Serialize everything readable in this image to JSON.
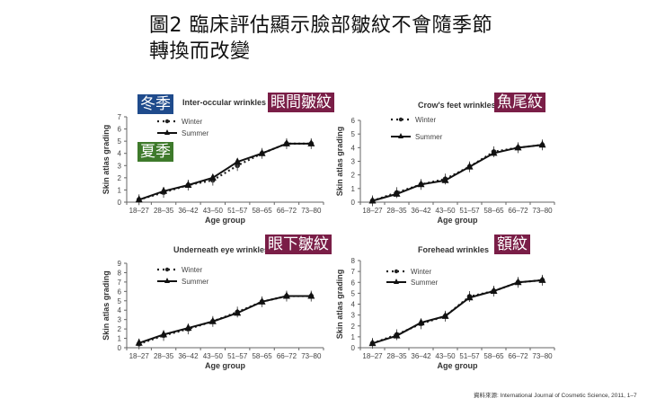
{
  "title": {
    "line1": "圖2 臨床評估顯示臉部皺紋不會隨季節",
    "line2": "轉換而改變"
  },
  "labels": {
    "winter_zh": "冬季",
    "summer_zh": "夏季"
  },
  "source": "資料來源: International Journal of Cosmetic Science, 2011, 1–7",
  "colors": {
    "wine": "#7a1e47",
    "blue": "#1f4b8c",
    "green": "#3e7a2b",
    "line": "#111111"
  },
  "chart_data": [
    {
      "type": "line",
      "title": "Inter-occular wrinkles",
      "title_zh": "眼間皺紋",
      "xlabel": "Age group",
      "ylabel": "Skin atlas grading",
      "categories": [
        "18–27",
        "28–35",
        "36–42",
        "43–50",
        "51–57",
        "58–65",
        "66–72",
        "73–80"
      ],
      "ylim": [
        0,
        7
      ],
      "yticks": [
        0,
        1,
        2,
        3,
        4,
        5,
        6,
        7
      ],
      "legend": [
        "Winter",
        "Summer"
      ],
      "series": [
        {
          "name": "Winter",
          "style": "dotted",
          "values": [
            0.2,
            0.8,
            1.4,
            1.8,
            3.0,
            4.0,
            4.8,
            4.8
          ]
        },
        {
          "name": "Summer",
          "style": "solid",
          "values": [
            0.2,
            0.9,
            1.4,
            2.0,
            3.3,
            4.0,
            4.8,
            4.8
          ]
        }
      ]
    },
    {
      "type": "line",
      "title": "Crow's feet wrinkles",
      "title_zh": "魚尾紋",
      "xlabel": "Age group",
      "ylabel": "Skin atlas grading",
      "categories": [
        "18–27",
        "28–35",
        "36–42",
        "43–50",
        "51–57",
        "58–65",
        "66–72",
        "73–80"
      ],
      "ylim": [
        0,
        6
      ],
      "yticks": [
        0,
        1,
        2,
        3,
        4,
        5,
        6
      ],
      "legend": [
        "Winter",
        "Summer"
      ],
      "series": [
        {
          "name": "Winter",
          "style": "dotted",
          "values": [
            0.1,
            0.7,
            1.3,
            1.7,
            2.6,
            3.7,
            4.0,
            4.2
          ]
        },
        {
          "name": "Summer",
          "style": "solid",
          "values": [
            0.1,
            0.6,
            1.3,
            1.6,
            2.6,
            3.6,
            4.0,
            4.2
          ]
        }
      ]
    },
    {
      "type": "line",
      "title": "Underneath eye wrinkles",
      "title_zh": "眼下皺紋",
      "xlabel": "Age group",
      "ylabel": "Skin atlas grading",
      "categories": [
        "18–27",
        "28–35",
        "36–42",
        "43–50",
        "51–57",
        "58–65",
        "66–72",
        "73–80"
      ],
      "ylim": [
        0,
        9
      ],
      "yticks": [
        0,
        1,
        2,
        3,
        4,
        5,
        6,
        7,
        8,
        9
      ],
      "legend": [
        "Winter",
        "Summer"
      ],
      "series": [
        {
          "name": "Winter",
          "style": "dotted",
          "values": [
            0.4,
            1.3,
            2.0,
            2.8,
            3.8,
            4.9,
            5.5,
            5.5
          ]
        },
        {
          "name": "Summer",
          "style": "solid",
          "values": [
            0.5,
            1.4,
            2.1,
            2.8,
            3.7,
            4.9,
            5.5,
            5.5
          ]
        }
      ]
    },
    {
      "type": "line",
      "title": "Forehead wrinkles",
      "title_zh": "額紋",
      "xlabel": "Age group",
      "ylabel": "Skin atlas grading",
      "categories": [
        "18–27",
        "28–35",
        "36–42",
        "43–50",
        "51–57",
        "58–65",
        "66–72",
        "73–80"
      ],
      "ylim": [
        0,
        8
      ],
      "yticks": [
        0,
        1,
        2,
        3,
        4,
        5,
        6,
        7,
        8
      ],
      "legend": [
        "Winter",
        "Summer"
      ],
      "series": [
        {
          "name": "Winter",
          "style": "dotted",
          "values": [
            0.4,
            1.2,
            2.2,
            2.9,
            4.7,
            5.2,
            6.0,
            6.2
          ]
        },
        {
          "name": "Summer",
          "style": "solid",
          "values": [
            0.4,
            1.1,
            2.3,
            2.9,
            4.6,
            5.2,
            6.0,
            6.2
          ]
        }
      ]
    }
  ]
}
